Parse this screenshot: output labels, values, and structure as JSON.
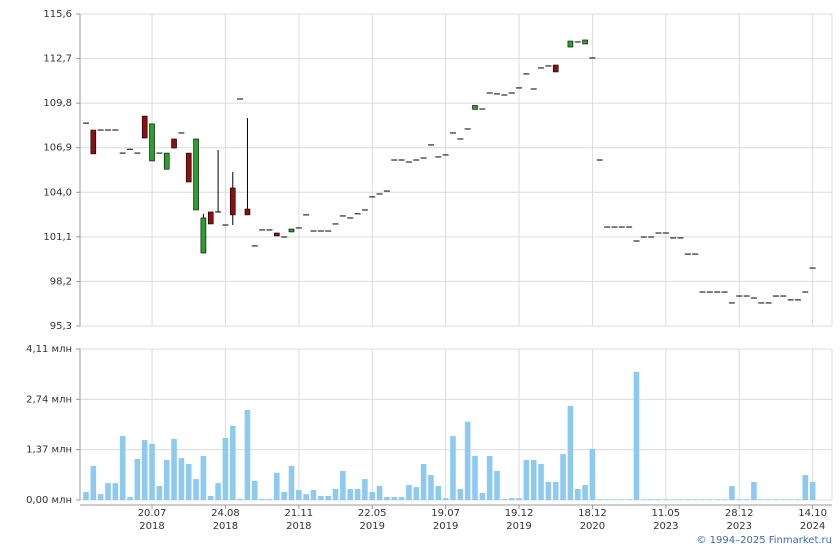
{
  "chart_data": [
    {
      "type": "candlestick",
      "up_color": "#2e9e2e",
      "down_color": "#8b1010",
      "ylim": [
        95.3,
        115.6
      ],
      "yticks": [
        {
          "value": 95.3,
          "label": "95,3"
        },
        {
          "value": 98.2,
          "label": "98,2"
        },
        {
          "value": 101.1,
          "label": "101,1"
        },
        {
          "value": 104.0,
          "label": "104,0"
        },
        {
          "value": 106.9,
          "label": "106,9"
        },
        {
          "value": 109.8,
          "label": "109,8"
        },
        {
          "value": 112.7,
          "label": "112,7"
        },
        {
          "value": 115.6,
          "label": "115,6"
        }
      ],
      "open": [
        108.5,
        108.05,
        108.05,
        108.05,
        108.05,
        106.55,
        106.8,
        106.55,
        108.96,
        106.04,
        106.55,
        105.5,
        107.47,
        107.86,
        106.55,
        102.85,
        100.05,
        102.72,
        102.72,
        101.87,
        104.28,
        110.07,
        102.91,
        100.51,
        101.55,
        101.55,
        101.35,
        101.09,
        101.42,
        101.68,
        102.53,
        101.48,
        101.48,
        101.48,
        101.94,
        102.46,
        102.33,
        102.6,
        102.85,
        103.7,
        103.89,
        104.08,
        106.1,
        106.1,
        105.97,
        106.1,
        106.23,
        107.08,
        106.3,
        106.43,
        107.86,
        107.47,
        108.12,
        109.4,
        109.42,
        110.46,
        110.4,
        110.33,
        110.46,
        110.79,
        111.7,
        110.72,
        112.09,
        112.22,
        112.28,
        null,
        113.45,
        113.78,
        113.65,
        112.74,
        106.1,
        101.74,
        101.74,
        101.74,
        101.74,
        100.83,
        101.09,
        101.09,
        101.35,
        101.35,
        101.03,
        101.03,
        99.98,
        99.98,
        97.51,
        97.51,
        97.51,
        97.51,
        96.8,
        97.25,
        97.25,
        97.12,
        96.8,
        96.8,
        97.25,
        97.25,
        97.0,
        97.0,
        97.51,
        99.07
      ],
      "high": [
        108.5,
        108.05,
        108.05,
        108.05,
        108.05,
        106.55,
        106.8,
        106.55,
        108.96,
        108.45,
        106.55,
        106.55,
        107.47,
        107.86,
        106.55,
        107.47,
        102.6,
        102.72,
        106.75,
        101.87,
        105.32,
        110.07,
        108.83,
        100.51,
        101.55,
        101.55,
        101.35,
        101.09,
        101.61,
        101.68,
        102.53,
        101.48,
        101.48,
        101.48,
        101.94,
        102.46,
        102.33,
        102.6,
        102.85,
        103.7,
        103.89,
        104.08,
        106.1,
        106.1,
        105.97,
        106.1,
        106.23,
        107.08,
        106.3,
        106.43,
        107.86,
        107.47,
        108.12,
        109.65,
        109.42,
        110.46,
        110.4,
        110.33,
        110.46,
        110.79,
        111.7,
        110.72,
        112.09,
        112.22,
        112.28,
        null,
        113.84,
        113.78,
        113.91,
        112.74,
        106.1,
        101.74,
        101.74,
        101.74,
        101.74,
        100.83,
        101.09,
        101.09,
        101.35,
        101.35,
        101.03,
        101.03,
        99.98,
        99.98,
        97.51,
        97.51,
        97.51,
        97.51,
        96.8,
        97.25,
        97.25,
        97.12,
        96.8,
        96.8,
        97.25,
        97.25,
        97.0,
        97.0,
        97.51,
        99.07
      ],
      "low": [
        108.5,
        106.5,
        108.05,
        108.05,
        108.05,
        106.55,
        106.8,
        106.55,
        107.53,
        106.04,
        106.55,
        105.5,
        106.88,
        107.86,
        104.67,
        102.85,
        100.05,
        101.94,
        102.72,
        101.87,
        101.87,
        110.07,
        102.53,
        100.51,
        101.55,
        101.55,
        101.16,
        101.09,
        101.42,
        101.68,
        102.53,
        101.48,
        101.48,
        101.48,
        101.94,
        102.46,
        102.33,
        102.6,
        102.85,
        103.7,
        103.89,
        104.08,
        106.1,
        106.1,
        105.97,
        106.1,
        106.23,
        107.08,
        106.3,
        106.43,
        107.86,
        107.47,
        108.12,
        109.4,
        109.42,
        110.46,
        110.4,
        110.33,
        110.46,
        110.79,
        111.7,
        110.72,
        112.09,
        112.22,
        111.83,
        null,
        113.45,
        113.78,
        113.65,
        112.74,
        106.1,
        101.74,
        101.74,
        101.74,
        101.74,
        100.83,
        101.09,
        101.09,
        101.35,
        101.35,
        101.03,
        101.03,
        99.98,
        99.98,
        97.51,
        97.51,
        97.51,
        97.51,
        96.8,
        97.25,
        97.25,
        97.12,
        96.8,
        96.8,
        97.25,
        97.25,
        97.0,
        97.0,
        97.51,
        99.07
      ],
      "close": [
        108.5,
        106.5,
        108.05,
        108.05,
        108.05,
        106.55,
        106.8,
        106.55,
        107.53,
        108.45,
        106.55,
        106.55,
        106.88,
        107.86,
        104.67,
        107.47,
        102.33,
        101.94,
        102.72,
        101.87,
        102.53,
        110.07,
        102.53,
        100.51,
        101.55,
        101.55,
        101.16,
        101.09,
        101.61,
        101.68,
        102.53,
        101.48,
        101.48,
        101.48,
        101.94,
        102.46,
        102.33,
        102.6,
        102.85,
        103.7,
        103.89,
        104.08,
        106.1,
        106.1,
        105.97,
        106.1,
        106.23,
        107.08,
        106.3,
        106.43,
        107.86,
        107.47,
        108.12,
        109.65,
        109.42,
        110.46,
        110.4,
        110.33,
        110.46,
        110.79,
        111.7,
        110.72,
        112.09,
        112.22,
        111.83,
        null,
        113.84,
        113.78,
        113.91,
        112.74,
        106.1,
        101.74,
        101.74,
        101.74,
        101.74,
        100.83,
        101.09,
        101.09,
        101.35,
        101.35,
        101.03,
        101.03,
        99.98,
        99.98,
        97.51,
        97.51,
        97.51,
        97.51,
        96.8,
        97.25,
        97.25,
        97.12,
        96.8,
        96.8,
        97.25,
        97.25,
        97.0,
        97.0,
        97.51,
        99.07
      ]
    },
    {
      "type": "bar",
      "color": "#8ec9f0",
      "ylim": [
        0,
        4.11
      ],
      "yticks": [
        {
          "value": 0,
          "label": "0,00 млн"
        },
        {
          "value": 1.37,
          "label": "1,37 млн"
        },
        {
          "value": 2.74,
          "label": "2,74 млн"
        },
        {
          "value": 4.11,
          "label": "4,11 млн"
        }
      ],
      "categories": [
        null,
        null,
        null,
        null,
        null,
        null,
        null,
        null,
        null,
        "20.07\n2018",
        null,
        null,
        null,
        null,
        null,
        null,
        null,
        null,
        null,
        "24.08\n2018",
        null,
        null,
        null,
        null,
        null,
        null,
        null,
        null,
        null,
        "21.11\n2018",
        null,
        null,
        null,
        null,
        null,
        null,
        null,
        null,
        null,
        "22.05\n2019",
        null,
        null,
        null,
        null,
        null,
        null,
        null,
        null,
        null,
        "19.07\n2019",
        null,
        null,
        null,
        null,
        null,
        null,
        null,
        null,
        null,
        "19.12\n2019",
        null,
        null,
        null,
        null,
        null,
        null,
        null,
        null,
        null,
        "18.12\n2020",
        null,
        null,
        null,
        null,
        null,
        null,
        null,
        null,
        null,
        "11.05\n2023",
        null,
        null,
        null,
        null,
        null,
        null,
        null,
        null,
        null,
        "28.12\n2023",
        null,
        null,
        null,
        null,
        null,
        null,
        null,
        null,
        null,
        "14.10\n2024"
      ],
      "values": [
        0.22,
        0.93,
        0.16,
        0.46,
        0.46,
        1.74,
        0.08,
        1.12,
        1.63,
        1.53,
        0.38,
        1.09,
        1.66,
        1.14,
        0.98,
        0.57,
        1.2,
        0.11,
        0.46,
        1.69,
        2.02,
        0.03,
        2.45,
        0.52,
        0.03,
        0.03,
        0.74,
        0.22,
        0.93,
        0.27,
        0.16,
        0.27,
        0.11,
        0.11,
        0.3,
        0.79,
        0.3,
        0.3,
        0.57,
        0.22,
        0.38,
        0.08,
        0.08,
        0.08,
        0.41,
        0.35,
        0.98,
        0.68,
        0.38,
        0.05,
        1.74,
        0.3,
        2.13,
        1.2,
        0.19,
        1.2,
        0.79,
        0.03,
        0.05,
        0.05,
        1.09,
        1.09,
        0.98,
        0.49,
        0.49,
        1.25,
        2.56,
        0.3,
        0.41,
        1.39,
        0.02,
        0.02,
        0.02,
        0.02,
        0.02,
        3.49,
        0.02,
        0.02,
        0.02,
        0.02,
        0.02,
        0.02,
        0.02,
        0.02,
        0.02,
        0.02,
        0.02,
        0.02,
        0.38,
        0.02,
        0.02,
        0.49,
        0.02,
        0.02,
        0.02,
        0.02,
        0.02,
        0.02,
        0.68,
        0.49
      ]
    }
  ],
  "credit": "© 1994–2025 Finmarket.ru"
}
